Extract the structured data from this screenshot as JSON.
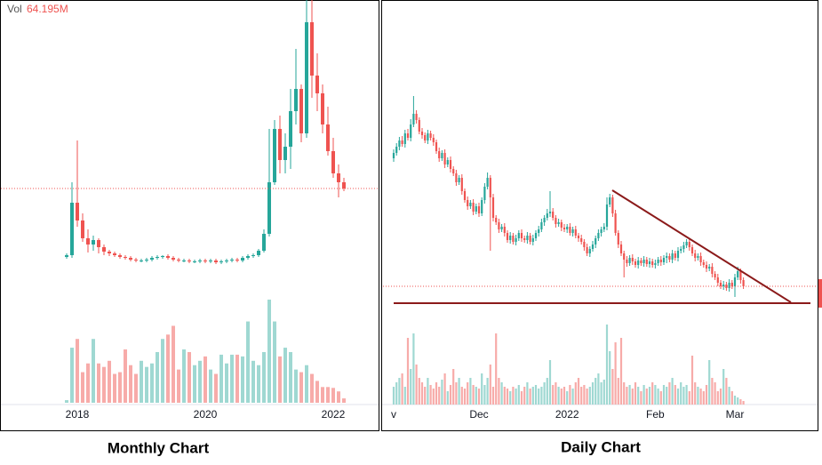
{
  "chart_data": [
    {
      "type": "candlestick",
      "title": "Monthly Chart",
      "volume_label": "Vol",
      "volume_value_label": "64.195M",
      "categories": [
        null,
        null,
        "2018",
        null,
        null,
        null,
        null,
        null,
        null,
        null,
        null,
        null,
        null,
        null,
        null,
        null,
        null,
        null,
        null,
        null,
        null,
        null,
        null,
        null,
        null,
        null,
        "2020",
        null,
        null,
        null,
        null,
        null,
        null,
        null,
        null,
        null,
        null,
        null,
        null,
        null,
        null,
        null,
        null,
        null,
        null,
        null,
        null,
        null,
        null,
        null,
        "2022",
        null,
        null
      ],
      "open": [
        11,
        13,
        72,
        52,
        32,
        25,
        30,
        22,
        17,
        15,
        13,
        11,
        10,
        8,
        7,
        7,
        8,
        10,
        11,
        12,
        10,
        8,
        7,
        7,
        6,
        6,
        7,
        6,
        7,
        5,
        6,
        7,
        8,
        7,
        10,
        12,
        13,
        18,
        37,
        95,
        155,
        120,
        135,
        175,
        200,
        150,
        275,
        215,
        195,
        160,
        130,
        105,
        95
      ],
      "high": [
        15,
        95,
        142,
        60,
        42,
        35,
        32,
        25,
        19,
        17,
        15,
        13,
        12,
        10,
        9,
        10,
        12,
        13,
        13,
        14,
        12,
        10,
        9,
        9,
        8,
        9,
        9,
        9,
        9,
        8,
        9,
        10,
        10,
        12,
        14,
        15,
        20,
        42,
        155,
        165,
        170,
        150,
        200,
        245,
        205,
        300,
        300,
        240,
        205,
        180,
        145,
        115,
        100
      ],
      "low": [
        9,
        10,
        45,
        28,
        16,
        18,
        15,
        13,
        12,
        11,
        9,
        8,
        6,
        5,
        5,
        5,
        6,
        8,
        9,
        8,
        6,
        5,
        5,
        4,
        4,
        4,
        4,
        4,
        3,
        3,
        4,
        5,
        5,
        5,
        8,
        10,
        11,
        16,
        34,
        92,
        105,
        105,
        110,
        160,
        140,
        145,
        190,
        175,
        150,
        125,
        100,
        78,
        85
      ],
      "close": [
        13,
        72,
        52,
        32,
        25,
        30,
        22,
        17,
        15,
        13,
        11,
        10,
        8,
        7,
        7,
        8,
        10,
        11,
        12,
        10,
        8,
        7,
        7,
        6,
        6,
        7,
        6,
        7,
        5,
        6,
        7,
        8,
        7,
        10,
        12,
        13,
        18,
        37,
        95,
        155,
        120,
        135,
        175,
        200,
        150,
        275,
        215,
        195,
        160,
        130,
        105,
        95,
        88
      ],
      "volume": [
        3,
        63,
        73,
        35,
        45,
        73,
        45,
        41,
        48,
        33,
        35,
        61,
        43,
        33,
        48,
        41,
        45,
        58,
        73,
        78,
        88,
        38,
        61,
        58,
        43,
        48,
        53,
        38,
        33,
        55,
        45,
        55,
        55,
        53,
        93,
        48,
        43,
        58,
        118,
        93,
        53,
        63,
        58,
        38,
        35,
        43,
        33,
        25,
        18,
        18,
        17,
        13,
        5
      ],
      "ylim": [
        0,
        300
      ],
      "volume_lim": [
        0,
        120
      ],
      "up_color": "#26a69a",
      "down_color": "#ef5350",
      "volume_up_color": "#9fd8d2",
      "volume_down_color": "#f7aba9"
    },
    {
      "type": "candlestick",
      "title": "Daily Chart",
      "categories": [
        "v",
        null,
        null,
        null,
        null,
        null,
        null,
        null,
        null,
        null,
        null,
        null,
        null,
        null,
        null,
        null,
        null,
        null,
        null,
        null,
        null,
        null,
        null,
        null,
        null,
        null,
        null,
        null,
        null,
        null,
        "Dec",
        null,
        null,
        null,
        null,
        null,
        null,
        null,
        null,
        null,
        null,
        null,
        null,
        null,
        null,
        null,
        null,
        null,
        null,
        null,
        null,
        null,
        null,
        null,
        null,
        null,
        null,
        null,
        null,
        null,
        null,
        "2022",
        null,
        null,
        null,
        null,
        null,
        null,
        null,
        null,
        null,
        null,
        null,
        null,
        null,
        null,
        null,
        null,
        null,
        null,
        null,
        null,
        null,
        null,
        null,
        null,
        null,
        null,
        null,
        null,
        null,
        null,
        "Feb",
        null,
        null,
        null,
        null,
        null,
        null,
        null,
        null,
        null,
        null,
        null,
        null,
        null,
        null,
        null,
        null,
        null,
        null,
        null,
        null,
        null,
        null,
        null,
        null,
        null,
        null,
        null,
        "Mar",
        null,
        null,
        null
      ],
      "open": [
        222,
        228,
        235,
        242,
        238,
        250,
        245,
        260,
        272,
        265,
        252,
        248,
        242,
        250,
        245,
        240,
        230,
        222,
        228,
        215,
        220,
        210,
        205,
        195,
        200,
        185,
        175,
        168,
        172,
        162,
        168,
        160,
        175,
        190,
        200,
        178,
        155,
        150,
        142,
        145,
        138,
        130,
        135,
        128,
        132,
        138,
        132,
        130,
        135,
        128,
        132,
        138,
        142,
        150,
        155,
        160,
        162,
        155,
        148,
        150,
        144,
        142,
        145,
        138,
        142,
        135,
        132,
        128,
        122,
        115,
        120,
        125,
        132,
        138,
        142,
        145,
        170,
        178,
        160,
        138,
        125,
        115,
        108,
        104,
        110,
        106,
        102,
        107,
        104,
        108,
        103,
        106,
        102,
        104,
        108,
        105,
        110,
        112,
        108,
        115,
        110,
        118,
        120,
        124,
        128,
        122,
        115,
        110,
        112,
        105,
        102,
        98,
        100,
        92,
        88,
        82,
        78,
        80,
        76,
        82,
        78,
        88,
        95,
        85
      ],
      "high": [
        232,
        239,
        246,
        247,
        254,
        255,
        266,
        292,
        276,
        268,
        256,
        251,
        254,
        253,
        249,
        243,
        234,
        231,
        232,
        223,
        224,
        213,
        209,
        203,
        204,
        188,
        179,
        175,
        176,
        171,
        172,
        178,
        194,
        206,
        203,
        182,
        158,
        154,
        148,
        149,
        141,
        139,
        138,
        136,
        141,
        142,
        135,
        139,
        138,
        136,
        141,
        146,
        154,
        158,
        165,
        185,
        166,
        158,
        154,
        153,
        148,
        148,
        149,
        145,
        146,
        138,
        136,
        131,
        126,
        123,
        129,
        135,
        142,
        145,
        149,
        178,
        182,
        181,
        164,
        141,
        129,
        118,
        112,
        113,
        114,
        109,
        111,
        110,
        112,
        111,
        110,
        109,
        108,
        111,
        112,
        113,
        116,
        115,
        119,
        118,
        122,
        123,
        128,
        131,
        132,
        125,
        119,
        115,
        116,
        108,
        106,
        103,
        104,
        95,
        92,
        85,
        84,
        83,
        86,
        85,
        92,
        100,
        98,
        88
      ],
      "low": [
        218,
        225,
        231,
        235,
        234,
        242,
        241,
        257,
        261,
        249,
        244,
        239,
        238,
        242,
        236,
        227,
        218,
        219,
        211,
        212,
        206,
        202,
        191,
        192,
        181,
        172,
        164,
        165,
        158,
        159,
        156,
        157,
        171,
        187,
        118,
        151,
        147,
        138,
        139,
        134,
        127,
        126,
        125,
        124,
        129,
        128,
        127,
        126,
        125,
        124,
        129,
        134,
        139,
        146,
        152,
        156,
        152,
        144,
        145,
        140,
        139,
        138,
        135,
        134,
        132,
        128,
        125,
        118,
        112,
        111,
        117,
        121,
        129,
        134,
        139,
        141,
        167,
        156,
        135,
        121,
        112,
        88,
        100,
        101,
        102,
        99,
        98,
        101,
        100,
        100,
        99,
        99,
        98,
        101,
        101,
        102,
        104,
        105,
        104,
        107,
        106,
        115,
        116,
        121,
        118,
        112,
        106,
        107,
        101,
        99,
        94,
        95,
        88,
        85,
        78,
        75,
        74,
        73,
        72,
        75,
        66,
        85,
        81,
        75
      ],
      "close": [
        228,
        235,
        242,
        238,
        250,
        245,
        260,
        272,
        265,
        252,
        248,
        242,
        250,
        245,
        240,
        230,
        222,
        228,
        215,
        220,
        210,
        205,
        195,
        200,
        185,
        175,
        168,
        172,
        162,
        168,
        160,
        175,
        190,
        200,
        178,
        155,
        150,
        142,
        145,
        138,
        130,
        135,
        128,
        132,
        138,
        132,
        130,
        135,
        128,
        132,
        138,
        142,
        150,
        155,
        160,
        162,
        155,
        148,
        150,
        144,
        142,
        145,
        138,
        142,
        135,
        132,
        128,
        122,
        115,
        120,
        125,
        132,
        138,
        142,
        145,
        170,
        178,
        160,
        138,
        125,
        115,
        108,
        104,
        110,
        106,
        102,
        107,
        104,
        108,
        103,
        106,
        102,
        104,
        108,
        105,
        110,
        112,
        108,
        115,
        110,
        118,
        120,
        124,
        128,
        122,
        115,
        110,
        112,
        105,
        102,
        98,
        100,
        92,
        88,
        82,
        78,
        80,
        76,
        82,
        78,
        88,
        95,
        85,
        78
      ],
      "volume": [
        20,
        25,
        30,
        35,
        20,
        75,
        40,
        80,
        45,
        30,
        25,
        20,
        30,
        22,
        18,
        25,
        20,
        28,
        35,
        15,
        22,
        40,
        25,
        30,
        20,
        18,
        25,
        30,
        22,
        20,
        18,
        35,
        22,
        30,
        45,
        20,
        80,
        30,
        25,
        20,
        18,
        15,
        20,
        18,
        22,
        15,
        20,
        25,
        18,
        20,
        22,
        18,
        20,
        25,
        30,
        50,
        22,
        25,
        20,
        18,
        20,
        15,
        22,
        18,
        25,
        30,
        20,
        22,
        18,
        20,
        25,
        30,
        35,
        25,
        28,
        90,
        60,
        40,
        70,
        30,
        75,
        25,
        20,
        22,
        18,
        25,
        20,
        15,
        22,
        18,
        20,
        25,
        22,
        18,
        15,
        22,
        20,
        25,
        30,
        22,
        18,
        25,
        20,
        22,
        15,
        55,
        25,
        20,
        18,
        15,
        22,
        50,
        30,
        25,
        15,
        18,
        40,
        30,
        20,
        15,
        10,
        8,
        6,
        4
      ],
      "ylim": [
        0,
        400
      ],
      "volume_lim": [
        0,
        100
      ],
      "up_color": "#26a69a",
      "down_color": "#ef5350",
      "volume_up_color": "#9fd8d2",
      "volume_down_color": "#f7aba9"
    }
  ]
}
